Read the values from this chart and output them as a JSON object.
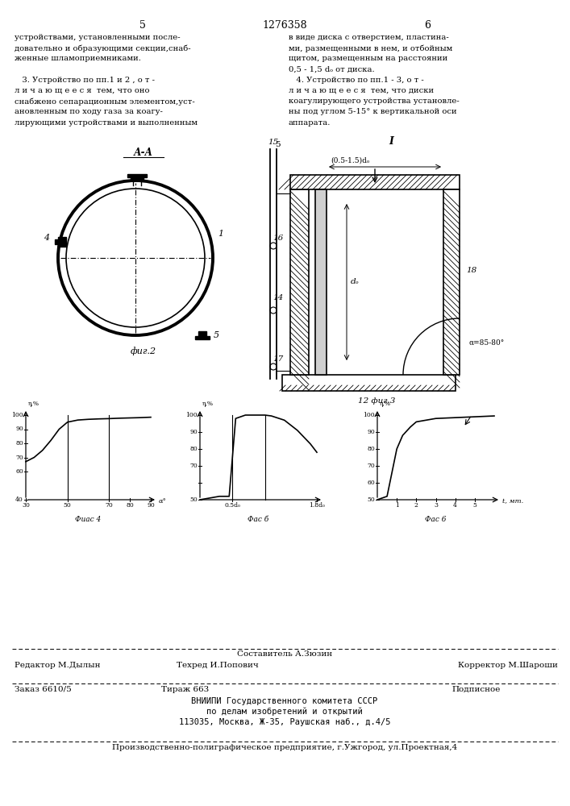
{
  "page_number_left": "5",
  "patent_number": "1276358",
  "page_number_right": "6",
  "text_left_col": [
    "устройствами, установленными после-",
    "довательно и образующими секции,снаб-",
    "женные шламоприемниками.",
    "",
    "   3. Устройство по пп.1 и 2 , о т -",
    "л и ч а ю щ е е с я  тем, что оно",
    "снабжено сепарационным элементом,уст-",
    "ановленным по ходу газа за коагу-",
    "лирующими устройствами и выполненным"
  ],
  "text_right_col": [
    "в виде диска с отверстием, пластина-",
    "ми, размещенными в нем, и отбойным",
    "щитом, размещенным на расстоянии",
    "0,5 - 1,5 dₒ от диска.",
    "   4. Устройство по пп.1 - 3, о т -",
    "л и ч а ю щ е е с я  тем, что диски",
    "коагулирующего устройства установле-",
    "ны под углом 5-15° к вертикальной оси",
    "аппарата."
  ],
  "fig2_label": "А-А",
  "fig2_caption": "фиг.2",
  "fig3_caption": "12 фиг.3",
  "fig4_caption": "Фиас 4",
  "fig5_caption": "Фас б",
  "fig6_caption": "Фас 6",
  "footer_line1_center": "Составитель А.Зюзин",
  "footer_line2_left": "Редактор М.Дылын",
  "footer_line2_center": "Техред И.Попович",
  "footer_line2_right": "Корректор М.Шароши",
  "footer_line3_left": "Заказ 6610/5",
  "footer_line3_center": "Тираж 663",
  "footer_line3_right": "Подписное",
  "footer_line4": "ВНИИПИ Государственного комитета СССР",
  "footer_line5": "по делам изобретений и открытий",
  "footer_line6": "113035, Москва, Ж-35, Раушская наб., д.4/5",
  "footer_line7": "Производственно-полиграфическое предприятие, г.Ужгород, ул.Проектная,4"
}
